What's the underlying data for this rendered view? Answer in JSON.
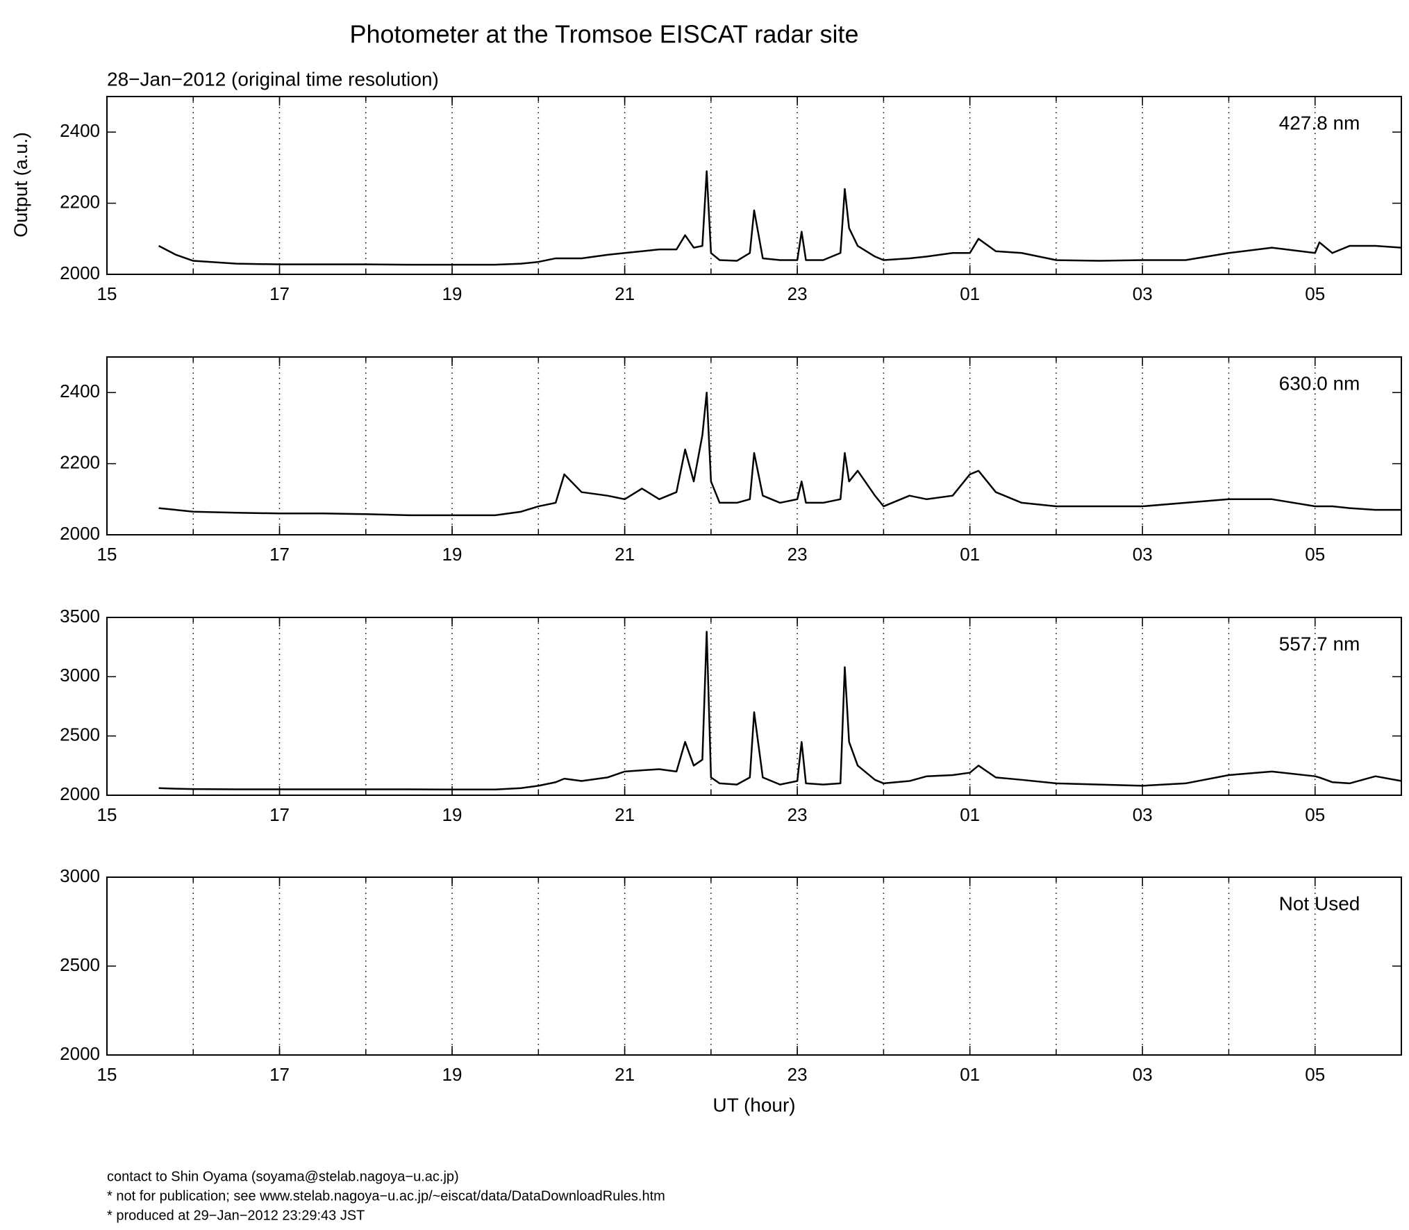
{
  "title": "Photometer at the Tromsoe EISCAT radar site",
  "subtitle": "28−Jan−2012 (original time resolution)",
  "ylabel": "Output (a.u.)",
  "xlabel": "UT (hour)",
  "footer": [
    "contact to Shin Oyama (soyama@stelab.nagoya−u.ac.jp)",
    "* not for publication; see www.stelab.nagoya−u.ac.jp/~eiscat/data/DataDownloadRules.htm",
    "* produced at 29−Jan−2012 23:29:43 JST"
  ],
  "chart_data": [
    {
      "type": "line",
      "annotation": "427.8 nm",
      "color": "#000000",
      "grid": true,
      "xlim": [
        15,
        30
      ],
      "xticks": [
        15,
        17,
        19,
        21,
        23,
        {
          "value": 25,
          "label": "01"
        },
        {
          "value": 27,
          "label": "03"
        },
        {
          "value": 29,
          "label": "05"
        }
      ],
      "xgrid": [
        16,
        17,
        18,
        19,
        20,
        21,
        22,
        23,
        24,
        25,
        26,
        27,
        28,
        29
      ],
      "ylim": [
        2000,
        2500
      ],
      "yticks": [
        2000,
        2200,
        2400
      ],
      "x": [
        15.6,
        15.8,
        16,
        16.5,
        17,
        17.5,
        18,
        18.5,
        19,
        19.5,
        19.8,
        20,
        20.2,
        20.3,
        20.5,
        20.8,
        21,
        21.2,
        21.4,
        21.6,
        21.7,
        21.8,
        21.9,
        21.95,
        22,
        22.1,
        22.3,
        22.45,
        22.5,
        22.6,
        22.8,
        23,
        23.05,
        23.1,
        23.3,
        23.5,
        23.55,
        23.6,
        23.7,
        23.9,
        24,
        24.3,
        24.5,
        24.8,
        25,
        25.1,
        25.3,
        25.6,
        26,
        26.5,
        27,
        27.5,
        28,
        28.5,
        29,
        29.05,
        29.2,
        29.4,
        29.7,
        30
      ],
      "values": [
        2080,
        2055,
        2038,
        2030,
        2028,
        2028,
        2028,
        2027,
        2027,
        2027,
        2030,
        2035,
        2045,
        2045,
        2045,
        2055,
        2060,
        2065,
        2070,
        2070,
        2110,
        2075,
        2080,
        2290,
        2060,
        2040,
        2038,
        2060,
        2180,
        2045,
        2040,
        2040,
        2120,
        2040,
        2040,
        2060,
        2240,
        2130,
        2080,
        2050,
        2040,
        2045,
        2050,
        2060,
        2060,
        2100,
        2065,
        2060,
        2040,
        2038,
        2040,
        2040,
        2060,
        2075,
        2060,
        2090,
        2060,
        2080,
        2080,
        2075
      ]
    },
    {
      "type": "line",
      "annotation": "630.0 nm",
      "color": "#000000",
      "grid": true,
      "xlim": [
        15,
        30
      ],
      "xticks": [
        15,
        17,
        19,
        21,
        23,
        {
          "value": 25,
          "label": "01"
        },
        {
          "value": 27,
          "label": "03"
        },
        {
          "value": 29,
          "label": "05"
        }
      ],
      "xgrid": [
        16,
        17,
        18,
        19,
        20,
        21,
        22,
        23,
        24,
        25,
        26,
        27,
        28,
        29
      ],
      "ylim": [
        2000,
        2500
      ],
      "yticks": [
        2000,
        2200,
        2400
      ],
      "x": [
        15.6,
        15.8,
        16,
        16.5,
        17,
        17.5,
        18,
        18.5,
        19,
        19.5,
        19.8,
        20,
        20.2,
        20.3,
        20.5,
        20.8,
        21,
        21.2,
        21.4,
        21.6,
        21.7,
        21.8,
        21.9,
        21.95,
        22,
        22.1,
        22.3,
        22.45,
        22.5,
        22.6,
        22.8,
        23,
        23.05,
        23.1,
        23.3,
        23.5,
        23.55,
        23.6,
        23.7,
        23.9,
        24,
        24.3,
        24.5,
        24.8,
        25,
        25.1,
        25.3,
        25.6,
        26,
        26.5,
        27,
        27.5,
        28,
        28.5,
        29,
        29.05,
        29.2,
        29.4,
        29.7,
        30
      ],
      "values": [
        2075,
        2070,
        2065,
        2062,
        2060,
        2060,
        2058,
        2055,
        2055,
        2055,
        2065,
        2080,
        2090,
        2170,
        2120,
        2110,
        2100,
        2130,
        2100,
        2120,
        2240,
        2150,
        2280,
        2400,
        2150,
        2090,
        2090,
        2100,
        2230,
        2110,
        2090,
        2100,
        2150,
        2090,
        2090,
        2100,
        2230,
        2150,
        2180,
        2110,
        2080,
        2110,
        2100,
        2110,
        2170,
        2180,
        2120,
        2090,
        2080,
        2080,
        2080,
        2090,
        2100,
        2100,
        2080,
        2080,
        2080,
        2075,
        2070,
        2070
      ]
    },
    {
      "type": "line",
      "annotation": "557.7 nm",
      "color": "#000000",
      "grid": true,
      "xlim": [
        15,
        30
      ],
      "xticks": [
        15,
        17,
        19,
        21,
        23,
        {
          "value": 25,
          "label": "01"
        },
        {
          "value": 27,
          "label": "03"
        },
        {
          "value": 29,
          "label": "05"
        }
      ],
      "xgrid": [
        16,
        17,
        18,
        19,
        20,
        21,
        22,
        23,
        24,
        25,
        26,
        27,
        28,
        29
      ],
      "ylim": [
        2000,
        3500
      ],
      "yticks": [
        2000,
        2500,
        3000,
        3500
      ],
      "x": [
        15.6,
        15.8,
        16,
        16.5,
        17,
        17.5,
        18,
        18.5,
        19,
        19.5,
        19.8,
        20,
        20.2,
        20.3,
        20.5,
        20.8,
        21,
        21.2,
        21.4,
        21.6,
        21.7,
        21.8,
        21.9,
        21.95,
        22,
        22.1,
        22.3,
        22.45,
        22.5,
        22.6,
        22.8,
        23,
        23.05,
        23.1,
        23.3,
        23.5,
        23.55,
        23.6,
        23.7,
        23.9,
        24,
        24.3,
        24.5,
        24.8,
        25,
        25.1,
        25.3,
        25.6,
        26,
        26.5,
        27,
        27.5,
        28,
        28.5,
        29,
        29.05,
        29.2,
        29.4,
        29.7,
        30
      ],
      "values": [
        2060,
        2055,
        2052,
        2050,
        2050,
        2050,
        2050,
        2050,
        2048,
        2048,
        2060,
        2080,
        2110,
        2140,
        2120,
        2150,
        2200,
        2210,
        2220,
        2200,
        2450,
        2250,
        2300,
        3380,
        2150,
        2100,
        2090,
        2150,
        2700,
        2150,
        2090,
        2120,
        2450,
        2100,
        2090,
        2100,
        3080,
        2450,
        2250,
        2130,
        2100,
        2120,
        2160,
        2170,
        2190,
        2250,
        2150,
        2130,
        2100,
        2090,
        2080,
        2100,
        2170,
        2200,
        2160,
        2150,
        2110,
        2100,
        2160,
        2120
      ]
    },
    {
      "type": "line",
      "annotation": "Not Used",
      "grid": true,
      "xlim": [
        15,
        30
      ],
      "xticks": [
        15,
        17,
        19,
        21,
        23,
        {
          "value": 25,
          "label": "01"
        },
        {
          "value": 27,
          "label": "03"
        },
        {
          "value": 29,
          "label": "05"
        }
      ],
      "xgrid": [
        16,
        17,
        18,
        19,
        20,
        21,
        22,
        23,
        24,
        25,
        26,
        27,
        28,
        29
      ],
      "ylim": [
        2000,
        3000
      ],
      "yticks": [
        2000,
        2500,
        3000
      ]
    }
  ]
}
